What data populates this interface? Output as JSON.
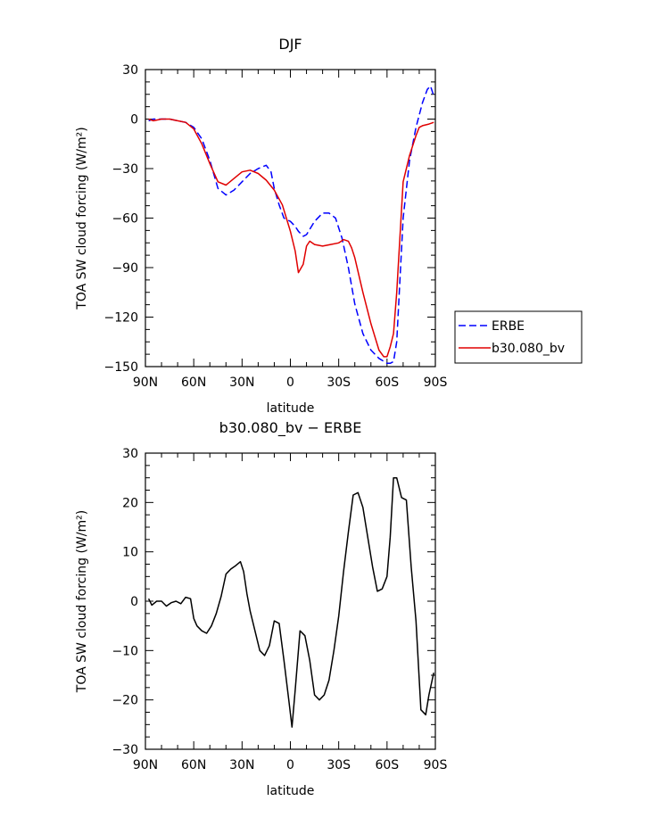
{
  "chart_data": [
    {
      "type": "line",
      "title": "DJF",
      "xlabel": "latitude",
      "ylabel": "TOA SW cloud forcing (W/m²)",
      "xlim": [
        -90,
        90
      ],
      "ylim": [
        -150,
        30
      ],
      "x_ticks": [
        -90,
        -60,
        -30,
        0,
        30,
        60,
        90
      ],
      "x_tick_labels": [
        "90N",
        "60N",
        "30N",
        "0",
        "30S",
        "60S",
        "90S"
      ],
      "y_ticks": [
        -150,
        -120,
        -90,
        -60,
        -30,
        0,
        30
      ],
      "y_tick_labels": [
        "−150",
        "−120",
        "−90",
        "−60",
        "−30",
        "0",
        "30"
      ],
      "legend_position": "right",
      "series": [
        {
          "name": "ERBE",
          "color": "#0000ff",
          "dash": "dashed",
          "x": [
            -88,
            -85,
            -80,
            -75,
            -70,
            -65,
            -60,
            -55,
            -50,
            -45,
            -40,
            -35,
            -30,
            -25,
            -20,
            -15,
            -12,
            -10,
            -7,
            -4,
            -2,
            0,
            3,
            5,
            8,
            10,
            15,
            20,
            24,
            28,
            32,
            36,
            40,
            45,
            50,
            55,
            60,
            62,
            64,
            66,
            70,
            74,
            78,
            82,
            85,
            87,
            89
          ],
          "y": [
            -1,
            0,
            0,
            0,
            -1,
            -2,
            -5,
            -12,
            -25,
            -42,
            -46,
            -43,
            -38,
            -33,
            -30,
            -28,
            -32,
            -42,
            -52,
            -60,
            -61,
            -62,
            -65,
            -68,
            -71,
            -70,
            -62,
            -57,
            -57,
            -60,
            -72,
            -90,
            -112,
            -130,
            -140,
            -145,
            -148,
            -148,
            -147,
            -135,
            -60,
            -25,
            -5,
            10,
            18,
            20,
            14
          ]
        },
        {
          "name": "b30.080_bv",
          "color": "#e00000",
          "dash": "solid",
          "x": [
            -88,
            -85,
            -80,
            -75,
            -70,
            -65,
            -60,
            -55,
            -50,
            -45,
            -40,
            -35,
            -30,
            -25,
            -20,
            -15,
            -10,
            -5,
            0,
            3,
            5,
            8,
            10,
            12,
            15,
            20,
            25,
            30,
            33,
            36,
            38,
            40,
            45,
            50,
            55,
            58,
            60,
            62,
            64,
            66,
            70,
            74,
            78,
            80,
            82,
            86,
            89
          ],
          "y": [
            0,
            -1,
            0,
            0,
            -1,
            -2,
            -6,
            -15,
            -27,
            -38,
            -40,
            -36,
            -32,
            -31,
            -33,
            -37,
            -43,
            -52,
            -68,
            -80,
            -93,
            -88,
            -77,
            -74,
            -76,
            -77,
            -76,
            -75,
            -73,
            -74,
            -78,
            -84,
            -105,
            -124,
            -140,
            -144,
            -144,
            -138,
            -130,
            -105,
            -38,
            -22,
            -10,
            -5,
            -4,
            -3,
            -2
          ]
        }
      ]
    },
    {
      "type": "line",
      "title": "b30.080_bv − ERBE",
      "xlabel": "latitude",
      "ylabel": "TOA SW cloud forcing (W/m²)",
      "xlim": [
        -90,
        90
      ],
      "ylim": [
        -30,
        30
      ],
      "x_ticks": [
        -90,
        -60,
        -30,
        0,
        30,
        60,
        90
      ],
      "x_tick_labels": [
        "90N",
        "60N",
        "30N",
        "0",
        "30S",
        "60S",
        "90S"
      ],
      "y_ticks": [
        -30,
        -20,
        -10,
        0,
        10,
        20,
        30
      ],
      "y_tick_labels": [
        "−30",
        "−20",
        "−10",
        "0",
        "10",
        "20",
        "30"
      ],
      "series": [
        {
          "name": "",
          "color": "#000000",
          "dash": "solid",
          "x": [
            -88,
            -86,
            -83,
            -80,
            -77,
            -74,
            -71,
            -68,
            -65,
            -62,
            -60,
            -58,
            -55,
            -52,
            -49,
            -46,
            -43,
            -40,
            -37,
            -34,
            -31,
            -29,
            -27,
            -25,
            -22,
            -19,
            -16,
            -13,
            -10,
            -7,
            -4,
            -1,
            1,
            3,
            6,
            9,
            12,
            15,
            18,
            21,
            24,
            27,
            30,
            33,
            36,
            39,
            42,
            45,
            48,
            51,
            54,
            57,
            60,
            62,
            64,
            66,
            69,
            72,
            75,
            78,
            81,
            84,
            86,
            89
          ],
          "y": [
            0.5,
            -0.8,
            0,
            0,
            -1,
            -0.3,
            0,
            -0.5,
            0.8,
            0.5,
            -3.5,
            -5,
            -6,
            -6.5,
            -5,
            -2.5,
            1,
            5.5,
            6.5,
            7.2,
            8,
            6,
            1.5,
            -2,
            -6,
            -10,
            -11,
            -9,
            -4,
            -4.5,
            -12,
            -20,
            -25.5,
            -18,
            -6,
            -7,
            -12,
            -19,
            -20,
            -19,
            -16,
            -10,
            -3,
            6,
            14,
            21.5,
            22,
            19,
            13,
            7,
            2,
            2.5,
            5,
            13,
            25,
            25,
            21,
            20.5,
            7,
            -4,
            -22,
            -23,
            -19,
            -14.5
          ]
        }
      ]
    }
  ]
}
